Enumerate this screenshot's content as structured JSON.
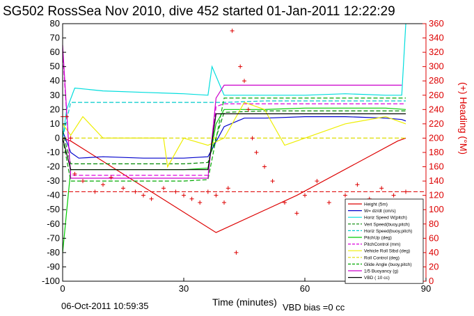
{
  "chart_data": {
    "type": "line",
    "title": "SG502 RossSea Nov 2010, dive 452 started 01-Jan-2011 12:22:29",
    "xlabel": "Time (minutes)",
    "ylabel": "",
    "ylabel_right": "(+) Heading (°M)",
    "xlim": [
      0,
      90
    ],
    "ylim": [
      -100,
      80
    ],
    "ylim_right": [
      0,
      360
    ],
    "x_ticks": [
      0,
      30,
      60,
      90
    ],
    "y_ticks": [
      -100,
      -90,
      -80,
      -70,
      -60,
      -50,
      -40,
      -30,
      -20,
      -10,
      0,
      10,
      20,
      30,
      40,
      50,
      60,
      70,
      80
    ],
    "y_ticks_right": [
      0,
      20,
      40,
      60,
      80,
      100,
      120,
      140,
      160,
      180,
      200,
      220,
      240,
      260,
      280,
      300,
      320,
      340,
      360
    ],
    "grid": true,
    "legend_position": "bottom-right",
    "footer_date": "06-Oct-2011 10:59:35",
    "footer_vbd": "VBD bias =0 cc",
    "series": [
      {
        "name": "Height (5m)",
        "color": "#dd0000",
        "style": "solid",
        "x": [
          0,
          2,
          38,
          58,
          83,
          85
        ],
        "y": [
          0,
          -2,
          -66,
          -40,
          -2,
          0
        ]
      },
      {
        "name": "W= dz/dt (cm/s)",
        "color": "#0000cc",
        "style": "solid",
        "x": [
          0,
          2,
          4,
          10,
          20,
          30,
          36,
          40,
          45,
          50,
          60,
          70,
          80,
          84,
          85
        ],
        "y": [
          5,
          -10,
          -14,
          -13,
          -14,
          -14,
          -13,
          8,
          14,
          14,
          15,
          15,
          14,
          13,
          12
        ]
      },
      {
        "name": "Horiz Speed W(pitch)",
        "color": "#00dddd",
        "style": "solid",
        "x": [
          0,
          1,
          3,
          10,
          20,
          30,
          36,
          37,
          40,
          50,
          60,
          70,
          80,
          84,
          85
        ],
        "y": [
          0,
          20,
          35,
          33,
          32,
          31,
          30,
          50,
          30,
          30,
          30,
          31,
          30,
          30,
          80
        ]
      },
      {
        "name": "Vert Speed(buoy,pitch)",
        "color": "#008800",
        "style": "dashed",
        "x": [
          0,
          2,
          10,
          20,
          30,
          36,
          40,
          50,
          60,
          70,
          80,
          85
        ],
        "y": [
          5,
          -18,
          -18,
          -18,
          -18,
          -17,
          18,
          19,
          19,
          19,
          19,
          19
        ]
      },
      {
        "name": "Horiz Speed(buoy,pitch)",
        "color": "#00cccc",
        "style": "dashed",
        "x": [
          0,
          2,
          10,
          20,
          30,
          36,
          40,
          50,
          60,
          70,
          80,
          85
        ],
        "y": [
          0,
          25,
          25,
          25,
          25,
          25,
          25,
          26,
          26,
          26,
          26,
          26
        ]
      },
      {
        "name": "PitchUp (deg)",
        "color": "#00cc00",
        "style": "solid",
        "x": [
          0,
          2,
          10,
          20,
          30,
          36,
          38,
          40,
          50,
          60,
          70,
          80,
          85
        ],
        "y": [
          -80,
          -22,
          -22,
          -22,
          -22,
          -21,
          10,
          20,
          20,
          21,
          21,
          21,
          20
        ]
      },
      {
        "name": "PitchControl (mm)",
        "color": "#dd00dd",
        "style": "dashed",
        "x": [
          0,
          2,
          10,
          20,
          30,
          36,
          38,
          40,
          50,
          60,
          70,
          80,
          85
        ],
        "y": [
          60,
          -26,
          -26,
          -26,
          -26,
          -26,
          22,
          24,
          24,
          24,
          24,
          24,
          24
        ]
      },
      {
        "name": "Vehicle Roll Stbd (deg)",
        "color": "#eeee00",
        "style": "solid",
        "x": [
          0,
          2,
          5,
          10,
          20,
          25,
          26,
          30,
          36,
          40,
          45,
          50,
          55,
          60,
          70,
          80,
          85
        ],
        "y": [
          10,
          2,
          15,
          0,
          0,
          0,
          -20,
          0,
          -5,
          0,
          25,
          20,
          -5,
          0,
          10,
          15,
          10
        ]
      },
      {
        "name": "Roll Control (deg)",
        "color": "#dddd00",
        "style": "dashed",
        "x": [
          0,
          85
        ],
        "y": [
          0,
          0
        ]
      },
      {
        "name": "Glide Angle (buoy,pitch)",
        "color": "#00aa00",
        "style": "dashed",
        "x": [
          0,
          2,
          10,
          20,
          30,
          36,
          40,
          50,
          60,
          70,
          80,
          85
        ],
        "y": [
          0,
          -30,
          -30,
          -30,
          -30,
          -29,
          28,
          28,
          28,
          28,
          28,
          28
        ]
      },
      {
        "name": "1/5 Buoyancy (g)",
        "color": "#cc00cc",
        "style": "solid",
        "x": [
          0,
          2,
          10,
          20,
          30,
          36,
          38,
          40,
          50,
          60,
          70,
          80,
          84
        ],
        "y": [
          65,
          -28,
          -28,
          -28,
          -28,
          -28,
          28,
          37,
          37,
          37,
          37,
          37,
          37
        ]
      },
      {
        "name": "VBD ( 10 cc)",
        "color": "#000000",
        "style": "solid",
        "x": [
          0,
          2,
          10,
          20,
          30,
          36,
          38,
          40,
          50,
          60,
          70,
          80,
          85
        ],
        "y": [
          0,
          -22,
          -22,
          -22,
          -22,
          -22,
          17,
          17,
          17,
          17,
          17,
          17,
          17
        ]
      }
    ],
    "heading_series": {
      "name": "(+) Heading",
      "color": "#dd0000",
      "marker": "+",
      "x": [
        0,
        1,
        2,
        3,
        5,
        8,
        10,
        12,
        15,
        18,
        20,
        22,
        25,
        28,
        30,
        32,
        34,
        36,
        38,
        40,
        41,
        42,
        43,
        44,
        45,
        46,
        47,
        48,
        50,
        52,
        55,
        58,
        60,
        63,
        66,
        70,
        73,
        76,
        79,
        82,
        85
      ],
      "y": [
        230,
        230,
        200,
        150,
        140,
        125,
        135,
        145,
        130,
        125,
        120,
        115,
        130,
        125,
        120,
        115,
        110,
        125,
        120,
        110,
        130,
        350,
        40,
        300,
        280,
        240,
        200,
        180,
        160,
        140,
        110,
        95,
        120,
        140,
        110,
        120,
        135,
        115,
        130,
        120,
        125
      ]
    },
    "heading_reference": {
      "color": "#dd0000",
      "style": "dashed",
      "y": 125
    }
  }
}
